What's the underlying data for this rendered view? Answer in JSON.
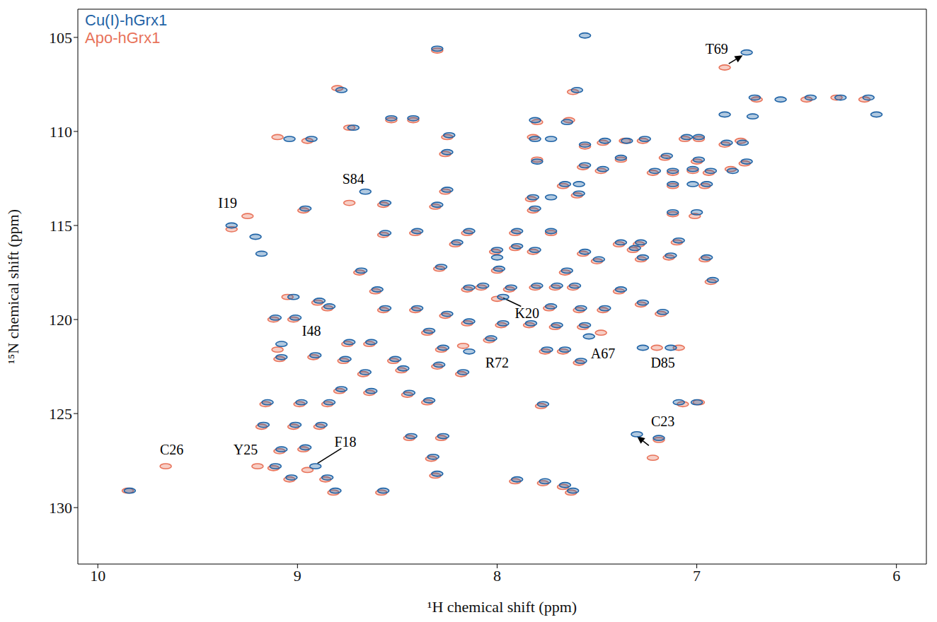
{
  "chart_data": {
    "type": "scatter",
    "x_label": "¹H chemical shift  (ppm)",
    "y_label": "¹⁵N chemical shift  (ppm)",
    "xlim": [
      10.1,
      5.85
    ],
    "xticks": [
      10,
      9,
      8,
      7,
      6
    ],
    "ylim": [
      133,
      103.5
    ],
    "yticks": [
      130,
      125,
      120,
      115,
      110,
      105
    ],
    "legend": "top-left",
    "grid": false,
    "marker": "ellipse",
    "series": [
      {
        "name": "Cu(I)-hGrx1",
        "color": "#1f63a6",
        "x": [
          7.56,
          8.3,
          6.75,
          8.78,
          7.6,
          6.71,
          6.58,
          6.43,
          6.28,
          6.14,
          6.86,
          6.1,
          8.53,
          8.42,
          7.81,
          7.65,
          6.72,
          8.72,
          8.93,
          9.04,
          8.24,
          7.81,
          7.73,
          7.46,
          7.35,
          7.26,
          7.05,
          6.99,
          6.85,
          6.77,
          7.56,
          8.25,
          7.8,
          7.38,
          7.15,
          6.99,
          7.56,
          7.47,
          6.75,
          7.21,
          7.12,
          7.02,
          6.93,
          6.82,
          7.66,
          7.59,
          7.12,
          7.02,
          6.95,
          8.25,
          7.59,
          7.82,
          7.73,
          8.66,
          8.56,
          8.3,
          7.81,
          7.12,
          7.0,
          8.96,
          9.33,
          9.21,
          9.18,
          8.4,
          8.14,
          7.9,
          8.56,
          7.73,
          7.38,
          7.28,
          7.09,
          8.2,
          7.9,
          7.81,
          8.0,
          7.56,
          7.31,
          8.0,
          7.49,
          7.27,
          7.13,
          7.65,
          6.95,
          8.28,
          7.99,
          8.68,
          8.6,
          7.38,
          6.92,
          8.14,
          8.07,
          7.93,
          7.8,
          7.7,
          7.61,
          9.02,
          8.89,
          8.84,
          8.56,
          8.4,
          8.25,
          7.97,
          7.73,
          7.58,
          7.46,
          7.27,
          7.17,
          9.11,
          9.01,
          8.14,
          7.97,
          7.83,
          7.7,
          7.56,
          7.54,
          8.74,
          8.63,
          8.34,
          8.03,
          7.75,
          7.66,
          7.27,
          7.13,
          8.27,
          8.14,
          9.08,
          8.91,
          8.76,
          9.08,
          8.51,
          8.29,
          7.58,
          8.47,
          8.17,
          8.66,
          8.78,
          8.63,
          8.44,
          8.34,
          9.15,
          8.98,
          8.84,
          7.09,
          7.0,
          7.77,
          9.17,
          9.01,
          8.88,
          8.43,
          8.27,
          7.3,
          7.19,
          8.96,
          9.08,
          8.32,
          9.11,
          8.91,
          9.03,
          8.85,
          8.3,
          7.9,
          7.76,
          7.66,
          8.81,
          8.57,
          9.84,
          7.62
        ],
        "values": [
          104.9,
          105.6,
          105.8,
          107.8,
          107.8,
          108.2,
          108.3,
          108.2,
          108.2,
          108.2,
          109.1,
          109.1,
          109.3,
          109.3,
          109.4,
          109.5,
          109.2,
          109.8,
          110.4,
          110.4,
          110.2,
          110.4,
          110.4,
          110.5,
          110.5,
          110.4,
          110.3,
          110.3,
          110.6,
          110.6,
          110.7,
          111.1,
          111.6,
          111.4,
          111.3,
          111.5,
          111.8,
          112.0,
          111.6,
          112.1,
          112.1,
          112.0,
          112.1,
          112.1,
          112.8,
          112.8,
          112.8,
          112.8,
          112.8,
          113.1,
          113.3,
          113.5,
          113.5,
          113.2,
          113.8,
          113.9,
          114.1,
          114.3,
          114.3,
          114.1,
          115.0,
          115.6,
          116.5,
          115.3,
          115.3,
          115.3,
          115.4,
          115.3,
          115.9,
          115.9,
          115.8,
          115.9,
          116.1,
          116.3,
          116.3,
          116.4,
          116.2,
          116.7,
          116.8,
          116.7,
          116.6,
          117.4,
          116.7,
          117.2,
          117.3,
          117.4,
          118.4,
          118.4,
          117.9,
          118.3,
          118.2,
          118.3,
          118.2,
          118.2,
          118.2,
          118.8,
          119.0,
          119.3,
          119.4,
          119.4,
          119.7,
          118.8,
          119.3,
          119.4,
          119.4,
          119.1,
          119.6,
          119.9,
          119.9,
          120.1,
          120.2,
          120.2,
          120.3,
          120.3,
          120.9,
          121.2,
          121.2,
          120.6,
          121.0,
          121.6,
          121.6,
          121.5,
          121.5,
          121.5,
          121.7,
          121.3,
          121.9,
          122.1,
          122.0,
          122.1,
          122.4,
          122.2,
          122.6,
          122.8,
          122.8,
          123.7,
          123.8,
          123.9,
          124.3,
          124.4,
          124.4,
          124.4,
          124.4,
          124.4,
          124.5,
          125.6,
          125.6,
          125.6,
          126.2,
          126.2,
          126.1,
          126.3,
          126.8,
          126.9,
          127.3,
          127.8,
          127.8,
          128.4,
          128.4,
          128.2,
          128.5,
          128.6,
          128.8,
          129.1,
          129.1,
          129.1,
          129.1
        ]
      },
      {
        "name": "Apo-hGrx1",
        "color": "#e8735a",
        "x": [
          8.3,
          6.86,
          8.8,
          7.62,
          6.7,
          6.45,
          6.3,
          6.16,
          8.53,
          8.42,
          7.8,
          7.64,
          8.74,
          9.1,
          8.95,
          8.25,
          7.82,
          7.47,
          7.36,
          7.27,
          7.06,
          6.99,
          6.86,
          6.78,
          7.56,
          8.26,
          7.8,
          7.38,
          7.16,
          7.0,
          7.57,
          7.48,
          6.76,
          7.22,
          7.12,
          7.02,
          6.94,
          6.83,
          7.67,
          7.12,
          6.96,
          8.26,
          7.6,
          7.83,
          8.74,
          8.57,
          8.31,
          7.82,
          7.12,
          7.01,
          8.97,
          9.33,
          9.25,
          8.41,
          8.15,
          7.91,
          8.57,
          7.73,
          7.39,
          7.29,
          7.1,
          8.21,
          7.91,
          7.82,
          8.01,
          7.57,
          7.32,
          7.5,
          7.28,
          7.14,
          7.66,
          6.96,
          8.29,
          8.0,
          8.69,
          8.61,
          7.39,
          6.93,
          8.15,
          8.08,
          7.94,
          7.81,
          7.71,
          7.62,
          9.05,
          8.9,
          8.85,
          8.57,
          8.41,
          8.26,
          8.0,
          7.74,
          7.59,
          7.47,
          7.28,
          7.18,
          9.12,
          9.02,
          8.15,
          7.98,
          7.84,
          7.71,
          7.57,
          7.48,
          8.75,
          8.64,
          8.35,
          8.04,
          7.76,
          7.67,
          7.09,
          7.2,
          8.28,
          8.17,
          9.1,
          8.92,
          8.77,
          9.09,
          8.52,
          8.3,
          7.59,
          8.48,
          8.18,
          8.67,
          8.79,
          8.64,
          8.45,
          8.35,
          9.16,
          8.99,
          8.85,
          7.07,
          6.99,
          7.78,
          9.18,
          9.02,
          8.89,
          8.44,
          8.28,
          7.22,
          7.19,
          8.97,
          9.09,
          8.33,
          9.12,
          8.95,
          9.04,
          8.86,
          8.31,
          7.91,
          7.77,
          7.67,
          8.82,
          8.58,
          9.85,
          7.63,
          9.66,
          9.2
        ],
        "values": [
          105.7,
          106.6,
          107.7,
          107.9,
          108.3,
          108.3,
          108.2,
          108.3,
          109.4,
          109.4,
          109.5,
          109.4,
          109.8,
          110.3,
          110.5,
          110.3,
          110.3,
          110.6,
          110.5,
          110.5,
          110.4,
          110.4,
          110.7,
          110.5,
          110.8,
          111.2,
          111.5,
          111.5,
          111.4,
          111.6,
          111.9,
          112.1,
          111.7,
          112.2,
          112.2,
          112.1,
          112.2,
          112.0,
          112.9,
          112.9,
          112.9,
          113.2,
          113.4,
          113.6,
          113.8,
          113.9,
          114.0,
          114.2,
          114.4,
          114.5,
          114.2,
          115.2,
          114.5,
          115.4,
          115.4,
          115.4,
          115.5,
          115.4,
          116.0,
          116.0,
          115.9,
          116.0,
          116.2,
          116.4,
          116.4,
          116.5,
          116.3,
          116.9,
          116.8,
          116.7,
          117.5,
          116.8,
          117.3,
          117.4,
          117.5,
          118.5,
          118.5,
          118.0,
          118.4,
          118.3,
          118.4,
          118.3,
          118.3,
          118.3,
          118.8,
          119.1,
          119.4,
          119.5,
          119.5,
          119.8,
          118.9,
          119.4,
          119.5,
          119.5,
          119.2,
          119.7,
          120.0,
          120.0,
          120.2,
          120.3,
          120.3,
          120.4,
          120.4,
          120.7,
          121.3,
          121.3,
          120.7,
          121.1,
          121.7,
          121.7,
          121.5,
          121.5,
          121.6,
          121.4,
          121.6,
          122.0,
          122.2,
          122.1,
          122.2,
          122.5,
          122.3,
          122.7,
          122.9,
          122.9,
          123.8,
          123.9,
          124.0,
          124.4,
          124.5,
          124.5,
          124.5,
          124.5,
          124.4,
          124.6,
          125.7,
          125.7,
          125.7,
          126.3,
          126.3,
          127.35,
          126.4,
          126.9,
          127.0,
          127.4,
          127.9,
          128.0,
          128.5,
          128.5,
          128.3,
          128.6,
          128.7,
          128.9,
          129.2,
          129.2,
          129.1,
          129.2,
          127.8,
          127.8
        ]
      }
    ],
    "annotations": [
      {
        "text": "T69",
        "x": 6.9,
        "y": 105.6,
        "line": [
          [
            6.84,
            106.4
          ],
          [
            6.77,
            105.95
          ]
        ],
        "line_style": "arrow"
      },
      {
        "text": "S84",
        "x": 8.72,
        "y": 112.5
      },
      {
        "text": "I19",
        "x": 9.35,
        "y": 113.8
      },
      {
        "text": "I48",
        "x": 8.93,
        "y": 120.6
      },
      {
        "text": "K20",
        "x": 7.85,
        "y": 119.65,
        "line": [
          [
            7.88,
            119.3
          ],
          [
            7.97,
            118.85
          ]
        ],
        "line_style": "solid"
      },
      {
        "text": "R72",
        "x": 8.0,
        "y": 122.3
      },
      {
        "text": "A67",
        "x": 7.47,
        "y": 121.8
      },
      {
        "text": "D85",
        "x": 7.17,
        "y": 122.3
      },
      {
        "text": "C23",
        "x": 7.17,
        "y": 125.4,
        "line": [
          [
            7.24,
            126.7
          ],
          [
            7.3,
            126.2
          ]
        ],
        "line_style": "arrow"
      },
      {
        "text": "C26",
        "x": 9.63,
        "y": 126.9
      },
      {
        "text": "Y25",
        "x": 9.26,
        "y": 126.9
      },
      {
        "text": "F18",
        "x": 8.76,
        "y": 126.5,
        "line": [
          [
            8.78,
            126.85
          ],
          [
            8.9,
            127.65
          ]
        ],
        "line_style": "solid"
      }
    ]
  }
}
